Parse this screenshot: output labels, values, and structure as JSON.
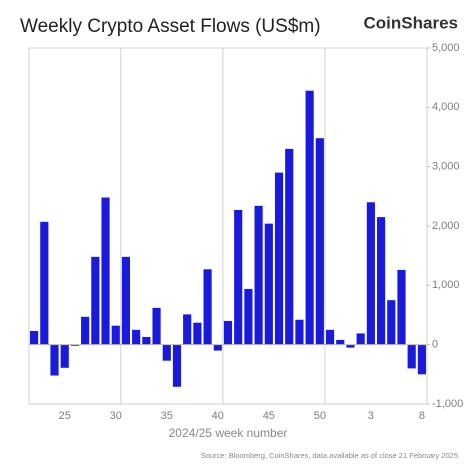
{
  "chart_data": {
    "type": "bar",
    "title": "Weekly Crypto Asset Flows (US$m)",
    "brand": "CoinShares",
    "x_label": "2024/25 week number",
    "source": "Source: Bloomberg, CoinShares, data available as of close 21 February 2025",
    "categories": [
      null,
      null,
      null,
      "25",
      null,
      null,
      null,
      null,
      "30",
      null,
      null,
      null,
      null,
      "35",
      null,
      null,
      null,
      null,
      "40",
      null,
      null,
      null,
      null,
      "45",
      null,
      null,
      null,
      null,
      "50",
      null,
      null,
      null,
      null,
      "3",
      null,
      null,
      null,
      null,
      "8"
    ],
    "values": [
      230,
      2070,
      -520,
      -390,
      -20,
      470,
      1480,
      2480,
      320,
      1480,
      250,
      130,
      620,
      -270,
      -710,
      510,
      370,
      1270,
      -100,
      400,
      2270,
      940,
      2340,
      2040,
      2900,
      3300,
      420,
      4280,
      3480,
      250,
      80,
      -50,
      190,
      2400,
      2150,
      750,
      1260,
      -400,
      -500
    ],
    "color": "#1a1adb",
    "ylim": [
      -1000,
      5000
    ],
    "yticks": [
      {
        "value": -1000,
        "label": "-1,000"
      },
      0,
      {
        "value": 1000,
        "label": "1,000"
      },
      {
        "value": 2000,
        "label": "2,000"
      },
      {
        "value": 3000,
        "label": "3,000"
      },
      {
        "value": 4000,
        "label": "4,000"
      },
      {
        "value": 5000,
        "label": "5,000"
      }
    ],
    "y_axis_side": "right",
    "grid": true
  }
}
